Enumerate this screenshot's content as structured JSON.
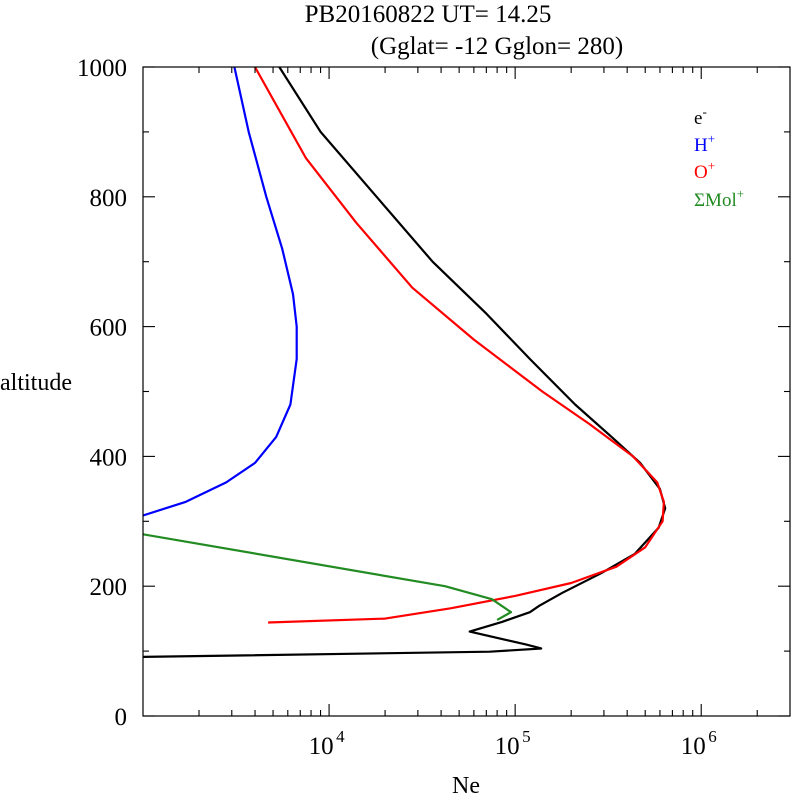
{
  "chart_data": {
    "type": "line",
    "title": "PB20160822   UT=  14.25",
    "subtitle": "(Gglat= -12   Gglon=  280)",
    "xlabel": "Ne",
    "ylabel": "altitude",
    "xscale": "log",
    "xlim": [
      1000,
      3000000
    ],
    "ylim": [
      0,
      1000
    ],
    "x_ticks": [
      {
        "value": 10000,
        "base": "10",
        "exp": "4"
      },
      {
        "value": 100000,
        "base": "10",
        "exp": "5"
      },
      {
        "value": 1000000,
        "base": "10",
        "exp": "6"
      }
    ],
    "y_ticks": [
      "0",
      "200",
      "400",
      "600",
      "800",
      "1000"
    ],
    "y_tick_values": [
      0,
      200,
      400,
      600,
      800,
      1000
    ],
    "legend_position": "top-right",
    "series": [
      {
        "name": "e-",
        "base": "e",
        "sup": "-",
        "color": "#000000",
        "points": [
          [
            1000,
            91
          ],
          [
            73000,
            99
          ],
          [
            138000,
            104
          ],
          [
            115000,
            110
          ],
          [
            57000,
            130
          ],
          [
            85000,
            145
          ],
          [
            120000,
            160
          ],
          [
            135000,
            170
          ],
          [
            180000,
            190
          ],
          [
            290000,
            220
          ],
          [
            440000,
            250
          ],
          [
            590000,
            290
          ],
          [
            640000,
            320
          ],
          [
            600000,
            350
          ],
          [
            470000,
            390
          ],
          [
            330000,
            430
          ],
          [
            210000,
            480
          ],
          [
            120000,
            550
          ],
          [
            70000,
            620
          ],
          [
            36000,
            700
          ],
          [
            18000,
            800
          ],
          [
            9000,
            900
          ],
          [
            5400,
            1000
          ]
        ]
      },
      {
        "name": "H+",
        "base": "H",
        "sup": "+",
        "color": "#0000ff",
        "points": [
          [
            1000,
            309
          ],
          [
            1700,
            330
          ],
          [
            2800,
            360
          ],
          [
            4000,
            390
          ],
          [
            5200,
            430
          ],
          [
            6200,
            480
          ],
          [
            6700,
            550
          ],
          [
            6700,
            600
          ],
          [
            6400,
            650
          ],
          [
            5600,
            720
          ],
          [
            4600,
            800
          ],
          [
            3700,
            900
          ],
          [
            3100,
            1000
          ]
        ]
      },
      {
        "name": "O+",
        "base": "O",
        "sup": "+",
        "color": "#ff0000",
        "points": [
          [
            4700,
            144
          ],
          [
            20000,
            150
          ],
          [
            45000,
            166
          ],
          [
            100000,
            185
          ],
          [
            200000,
            205
          ],
          [
            350000,
            230
          ],
          [
            500000,
            260
          ],
          [
            620000,
            300
          ],
          [
            630000,
            330
          ],
          [
            580000,
            360
          ],
          [
            430000,
            400
          ],
          [
            250000,
            450
          ],
          [
            140000,
            500
          ],
          [
            60000,
            580
          ],
          [
            28000,
            660
          ],
          [
            14000,
            760
          ],
          [
            7500,
            860
          ],
          [
            4000,
            1000
          ]
        ]
      },
      {
        "name": "ΣMol+",
        "base": "ΣMol",
        "sup": "+",
        "color": "#228b22",
        "points": [
          [
            1000,
            280
          ],
          [
            42000,
            200
          ],
          [
            75000,
            180
          ],
          [
            95000,
            160
          ],
          [
            80000,
            148
          ]
        ]
      }
    ]
  }
}
